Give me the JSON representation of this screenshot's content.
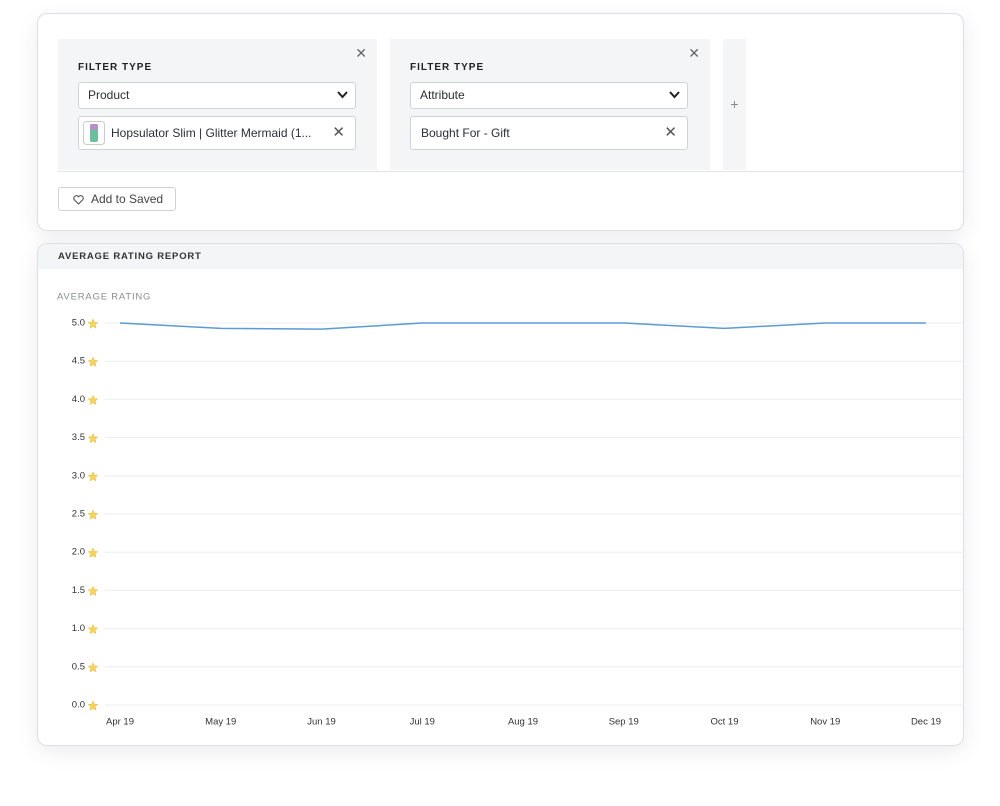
{
  "filters": [
    {
      "label": "FILTER TYPE",
      "select": "Product",
      "value": "Hopsulator Slim | Glitter Mermaid (1..."
    },
    {
      "label": "FILTER TYPE",
      "select": "Attribute",
      "value": "Bought For - Gift"
    }
  ],
  "button": "Add to Saved",
  "report": {
    "title": "AVERAGE RATING REPORT"
  },
  "chart_data": {
    "type": "line",
    "ylabel": "AVERAGE RATING",
    "categories": [
      "Apr 19",
      "May 19",
      "Jun 19",
      "Jul 19",
      "Aug 19",
      "Sep 19",
      "Oct 19",
      "Nov 19",
      "Dec 19"
    ],
    "series": [
      {
        "color": "#5b9bd5",
        "values": [
          5.0,
          4.93,
          4.92,
          5.0,
          5.0,
          5.0,
          4.93,
          5.0,
          5.0
        ]
      }
    ],
    "ylim": [
      0,
      5
    ],
    "yticks": [
      {
        "value": 0,
        "label": "0.0"
      },
      {
        "value": 0.5,
        "label": "0.5"
      },
      {
        "value": 1,
        "label": "1.0"
      },
      {
        "value": 1.5,
        "label": "1.5"
      },
      {
        "value": 2,
        "label": "2.0"
      },
      {
        "value": 2.5,
        "label": "2.5"
      },
      {
        "value": 3,
        "label": "3.0"
      },
      {
        "value": 3.5,
        "label": "3.5"
      },
      {
        "value": 4,
        "label": "4.0"
      },
      {
        "value": 4.5,
        "label": "4.5"
      },
      {
        "value": 5,
        "label": "5.0"
      }
    ],
    "grid": true
  }
}
